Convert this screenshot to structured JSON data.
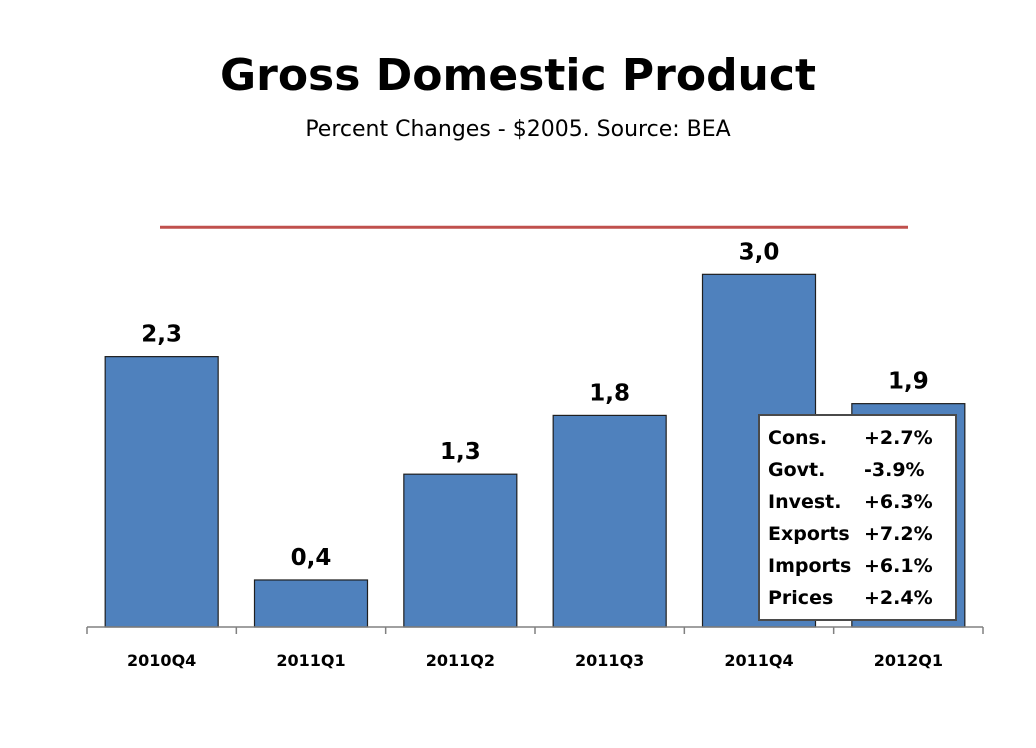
{
  "header": {
    "title": "Gross Domestic Product",
    "subtitle": "Percent Changes - $2005.  Source: BEA"
  },
  "chart_data": {
    "type": "bar",
    "title": "Gross Domestic Product",
    "subtitle": "Percent Changes - $2005.  Source: BEA",
    "categories": [
      "2010Q4",
      "2011Q1",
      "2011Q2",
      "2011Q3",
      "2011Q4",
      "2012Q1"
    ],
    "values": [
      2.3,
      0.4,
      1.3,
      1.8,
      3.0,
      1.9
    ],
    "data_labels": [
      "2,3",
      "0,4",
      "1,3",
      "1,8",
      "3,0",
      "1,9"
    ],
    "ylim": [
      0,
      4.5
    ],
    "reference_line": 3.4,
    "grid": false,
    "colors": {
      "bar": "#4F81BD",
      "bar_border": "#1F1F1F",
      "reference_line": "#C0504D",
      "axis": "#808080"
    }
  },
  "breakdown": {
    "items": [
      {
        "label": "Cons.",
        "value": "+2.7%"
      },
      {
        "label": "Govt.",
        "value": "-3.9%"
      },
      {
        "label": "Invest.",
        "value": "+6.3%"
      },
      {
        "label": "Exports",
        "value": "+7.2%"
      },
      {
        "label": "Imports",
        "value": "+6.1%"
      },
      {
        "label": "Prices",
        "value": "+2.4%"
      }
    ]
  }
}
